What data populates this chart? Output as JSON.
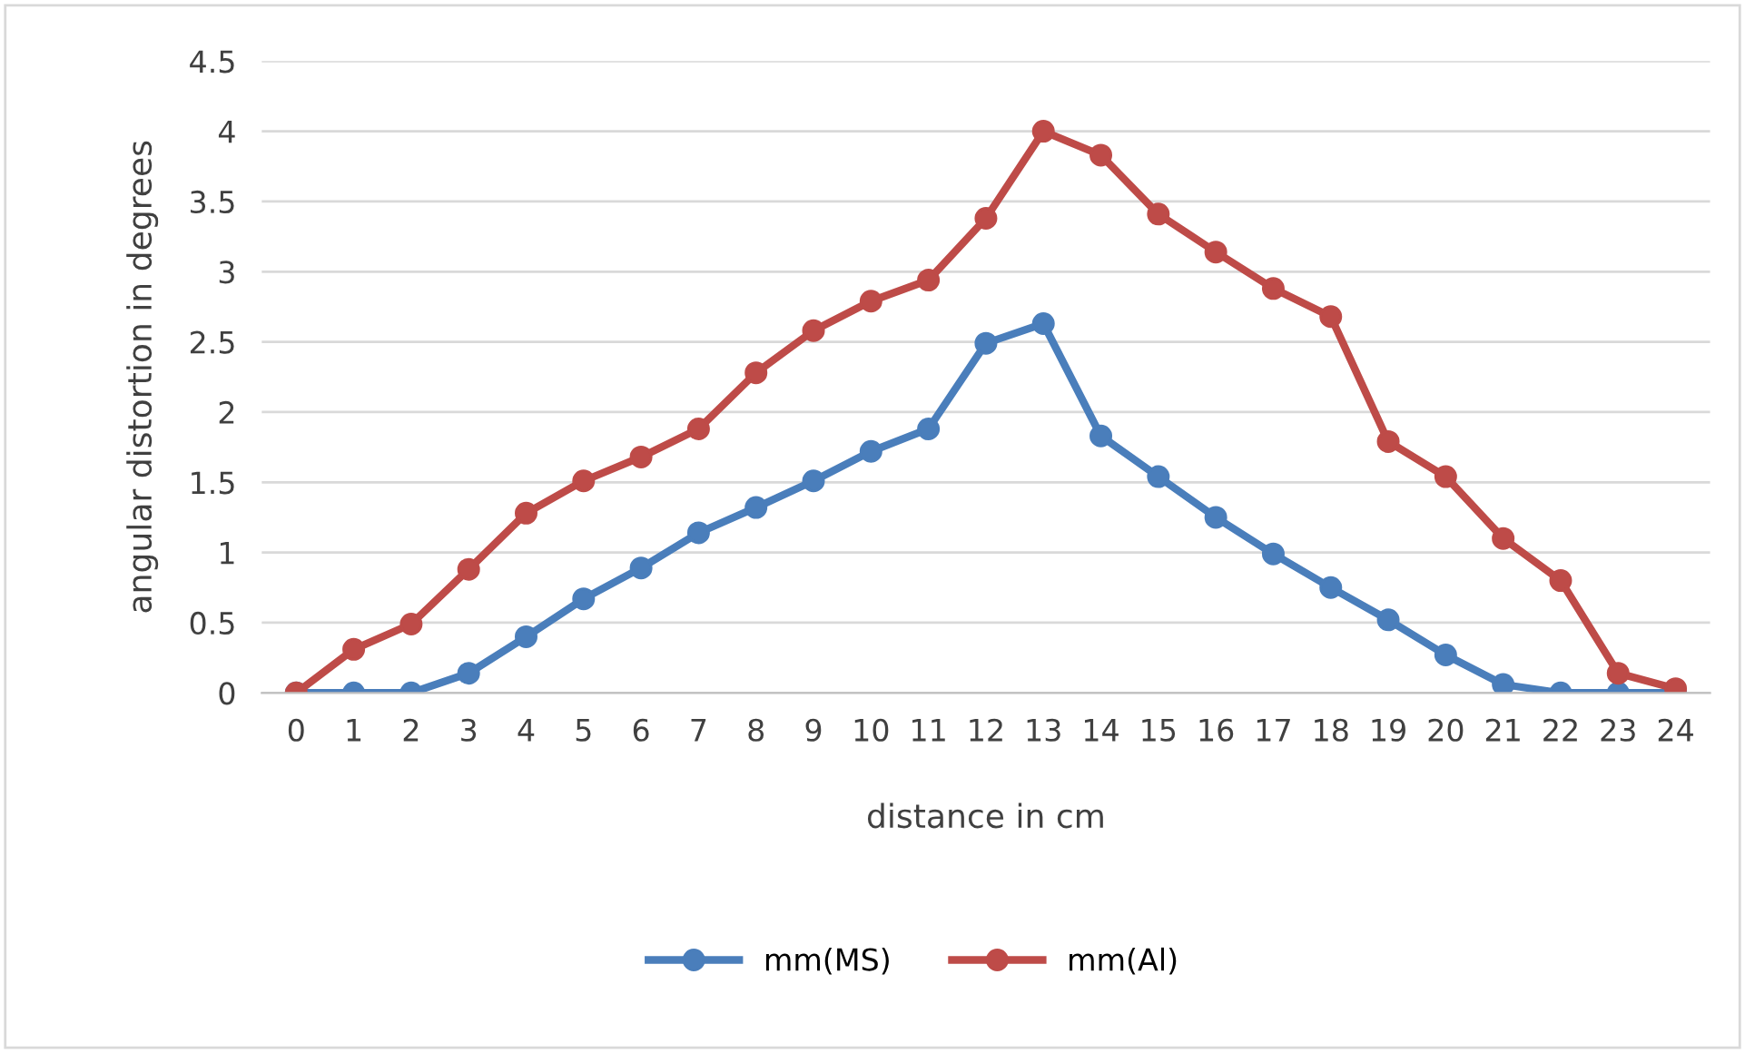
{
  "chart_data": {
    "type": "line",
    "xlabel": "distance in cm",
    "ylabel": "angular distortion in degrees",
    "categories": [
      "0",
      "1",
      "2",
      "3",
      "4",
      "5",
      "6",
      "7",
      "8",
      "9",
      "10",
      "11",
      "12",
      "13",
      "14",
      "15",
      "16",
      "17",
      "18",
      "19",
      "20",
      "21",
      "22",
      "23",
      "24"
    ],
    "series": [
      {
        "name": "mm(MS)",
        "color": "#4a7ebb",
        "values": [
          0,
          0,
          0,
          0.14,
          0.4,
          0.67,
          0.89,
          1.14,
          1.32,
          1.51,
          1.72,
          1.88,
          2.49,
          2.63,
          1.83,
          1.54,
          1.25,
          0.99,
          0.75,
          0.52,
          0.27,
          0.06,
          0,
          0,
          0
        ]
      },
      {
        "name": "mm(Al)",
        "color": "#be4b48",
        "values": [
          0,
          0.31,
          0.49,
          0.88,
          1.28,
          1.51,
          1.68,
          1.88,
          2.28,
          2.58,
          2.79,
          2.94,
          3.38,
          4.0,
          3.83,
          3.41,
          3.14,
          2.88,
          2.68,
          1.79,
          1.54,
          1.1,
          0.8,
          0.14,
          0.03
        ]
      }
    ],
    "ylim": [
      0,
      4.5
    ],
    "yticks": [
      0,
      0.5,
      1,
      1.5,
      2,
      2.5,
      3,
      3.5,
      4,
      4.5
    ],
    "grid": "y",
    "legend": "bottom",
    "marker": "circle",
    "line_style": "solid"
  }
}
